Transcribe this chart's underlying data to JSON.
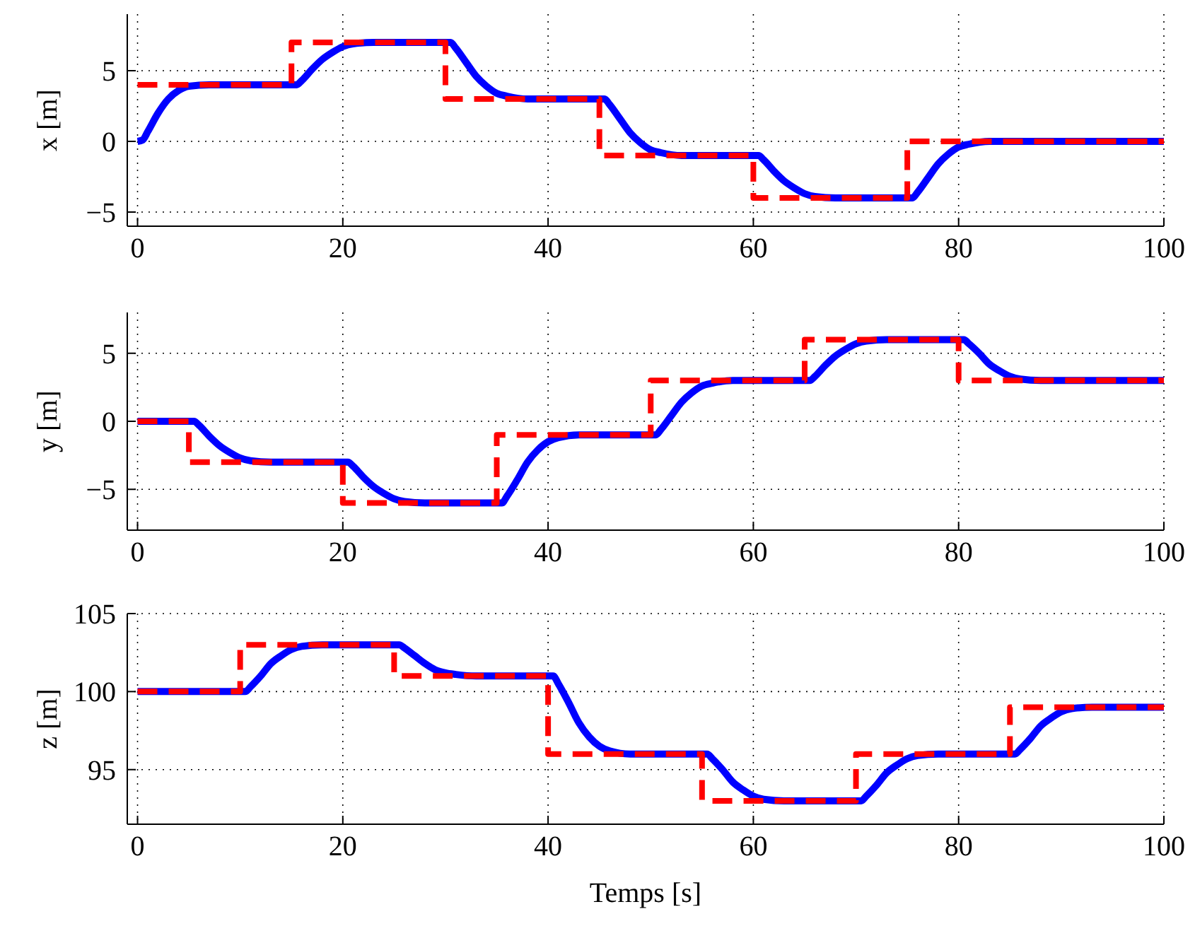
{
  "chart_data": [
    {
      "type": "line",
      "ylabel": "x [m]",
      "xlim": [
        -1,
        100
      ],
      "xticks": [
        0,
        20,
        40,
        60,
        80,
        100
      ],
      "ylim": [
        -6,
        9
      ],
      "yticks": [
        -5,
        0,
        5
      ],
      "grid": true,
      "series": [
        {
          "type": "line",
          "color": "#0000ff",
          "line_style": "solid",
          "x": [
            0,
            0.5,
            1,
            2,
            3,
            4,
            5,
            7,
            15.5,
            16,
            17,
            18,
            19,
            20,
            21,
            23,
            30.5,
            31,
            32,
            33,
            34,
            35,
            36,
            38,
            45.5,
            46,
            47,
            48,
            49,
            50,
            51,
            53,
            60.5,
            61,
            62,
            63,
            64,
            65,
            66,
            68,
            75.5,
            76,
            77,
            78,
            79,
            80,
            81,
            83,
            100
          ],
          "values": [
            0,
            0.1,
            0.7,
            2,
            3,
            3.6,
            3.9,
            4,
            4,
            4.3,
            5.1,
            5.8,
            6.3,
            6.7,
            6.9,
            7,
            7,
            6.6,
            5.6,
            4.6,
            3.9,
            3.4,
            3.2,
            3,
            3,
            2.6,
            1.6,
            0.6,
            -0.1,
            -0.6,
            -0.8,
            -1,
            -1,
            -1.3,
            -2.1,
            -2.8,
            -3.3,
            -3.7,
            -3.9,
            -4,
            -4,
            -3.6,
            -2.6,
            -1.6,
            -0.9,
            -0.4,
            -0.2,
            0,
            0
          ]
        },
        {
          "type": "step",
          "color": "#ff0000",
          "line_style": "dashed",
          "x": [
            0,
            15,
            30,
            45,
            60,
            75,
            100
          ],
          "values": [
            4,
            7,
            3,
            -1,
            -4,
            0,
            0
          ]
        }
      ]
    },
    {
      "type": "line",
      "ylabel": "y [m]",
      "xlim": [
        -1,
        100
      ],
      "xticks": [
        0,
        20,
        40,
        60,
        80,
        100
      ],
      "ylim": [
        -8,
        8
      ],
      "yticks": [
        -5,
        0,
        5
      ],
      "grid": true,
      "series": [
        {
          "type": "line",
          "color": "#0000ff",
          "line_style": "solid",
          "x": [
            0,
            5.5,
            6,
            7,
            8,
            9,
            10,
            11,
            13,
            20.5,
            21,
            22,
            23,
            24,
            25,
            26,
            28,
            35.5,
            36,
            37,
            38,
            39,
            40,
            41,
            43,
            50.5,
            51,
            52,
            53,
            54,
            55,
            56,
            58,
            65.5,
            66,
            67,
            68,
            69,
            70,
            71,
            73,
            80.5,
            81,
            82,
            83,
            84,
            85,
            86,
            88,
            100
          ],
          "values": [
            0,
            0,
            -0.3,
            -1.1,
            -1.8,
            -2.3,
            -2.7,
            -2.9,
            -3,
            -3,
            -3.3,
            -4.1,
            -4.8,
            -5.3,
            -5.7,
            -5.9,
            -6,
            -6,
            -5.5,
            -4.3,
            -3,
            -2.1,
            -1.5,
            -1.2,
            -1,
            -1,
            -0.6,
            0.4,
            1.4,
            2.1,
            2.6,
            2.8,
            3,
            3,
            3.3,
            4.1,
            4.8,
            5.3,
            5.7,
            5.9,
            6,
            6,
            5.7,
            5,
            4.2,
            3.7,
            3.3,
            3.1,
            3,
            3
          ]
        },
        {
          "type": "step",
          "color": "#ff0000",
          "line_style": "dashed",
          "x": [
            0,
            5,
            20,
            35,
            50,
            65,
            80,
            100
          ],
          "values": [
            0,
            -3,
            -6,
            -1,
            3,
            6,
            3,
            3
          ]
        }
      ]
    },
    {
      "type": "line",
      "xlabel": "Temps [s]",
      "ylabel": "z [m]",
      "xlim": [
        -1,
        100
      ],
      "xticks": [
        0,
        20,
        40,
        60,
        80,
        100
      ],
      "ylim": [
        91.5,
        105
      ],
      "yticks": [
        95,
        100,
        105
      ],
      "grid": true,
      "series": [
        {
          "type": "line",
          "color": "#0000ff",
          "line_style": "solid",
          "x": [
            0,
            10.5,
            11,
            12,
            13,
            14,
            15,
            16,
            18,
            25.5,
            26,
            27,
            28,
            29,
            30,
            31,
            33,
            40.5,
            41,
            42,
            43,
            44,
            45,
            46,
            48,
            55.5,
            56,
            57,
            58,
            59,
            60,
            61,
            63,
            70.5,
            71,
            72,
            73,
            74,
            75,
            76,
            78,
            85.5,
            86,
            87,
            88,
            89,
            90,
            91,
            93,
            100
          ],
          "values": [
            100,
            100,
            100.3,
            101,
            101.8,
            102.3,
            102.7,
            102.9,
            103,
            103,
            102.8,
            102.3,
            101.8,
            101.4,
            101.2,
            101.1,
            101,
            101,
            100.5,
            99.3,
            98,
            97.1,
            96.5,
            96.2,
            96,
            96,
            95.7,
            95,
            94.2,
            93.7,
            93.3,
            93.1,
            93,
            93,
            93.3,
            94,
            94.8,
            95.3,
            95.7,
            95.9,
            96,
            96,
            96.3,
            97,
            97.8,
            98.3,
            98.7,
            98.9,
            99,
            99
          ]
        },
        {
          "type": "step",
          "color": "#ff0000",
          "line_style": "dashed",
          "x": [
            0,
            10,
            25,
            40,
            55,
            70,
            85,
            100
          ],
          "values": [
            100,
            103,
            101,
            96,
            93,
            96,
            99,
            99
          ]
        }
      ]
    }
  ]
}
